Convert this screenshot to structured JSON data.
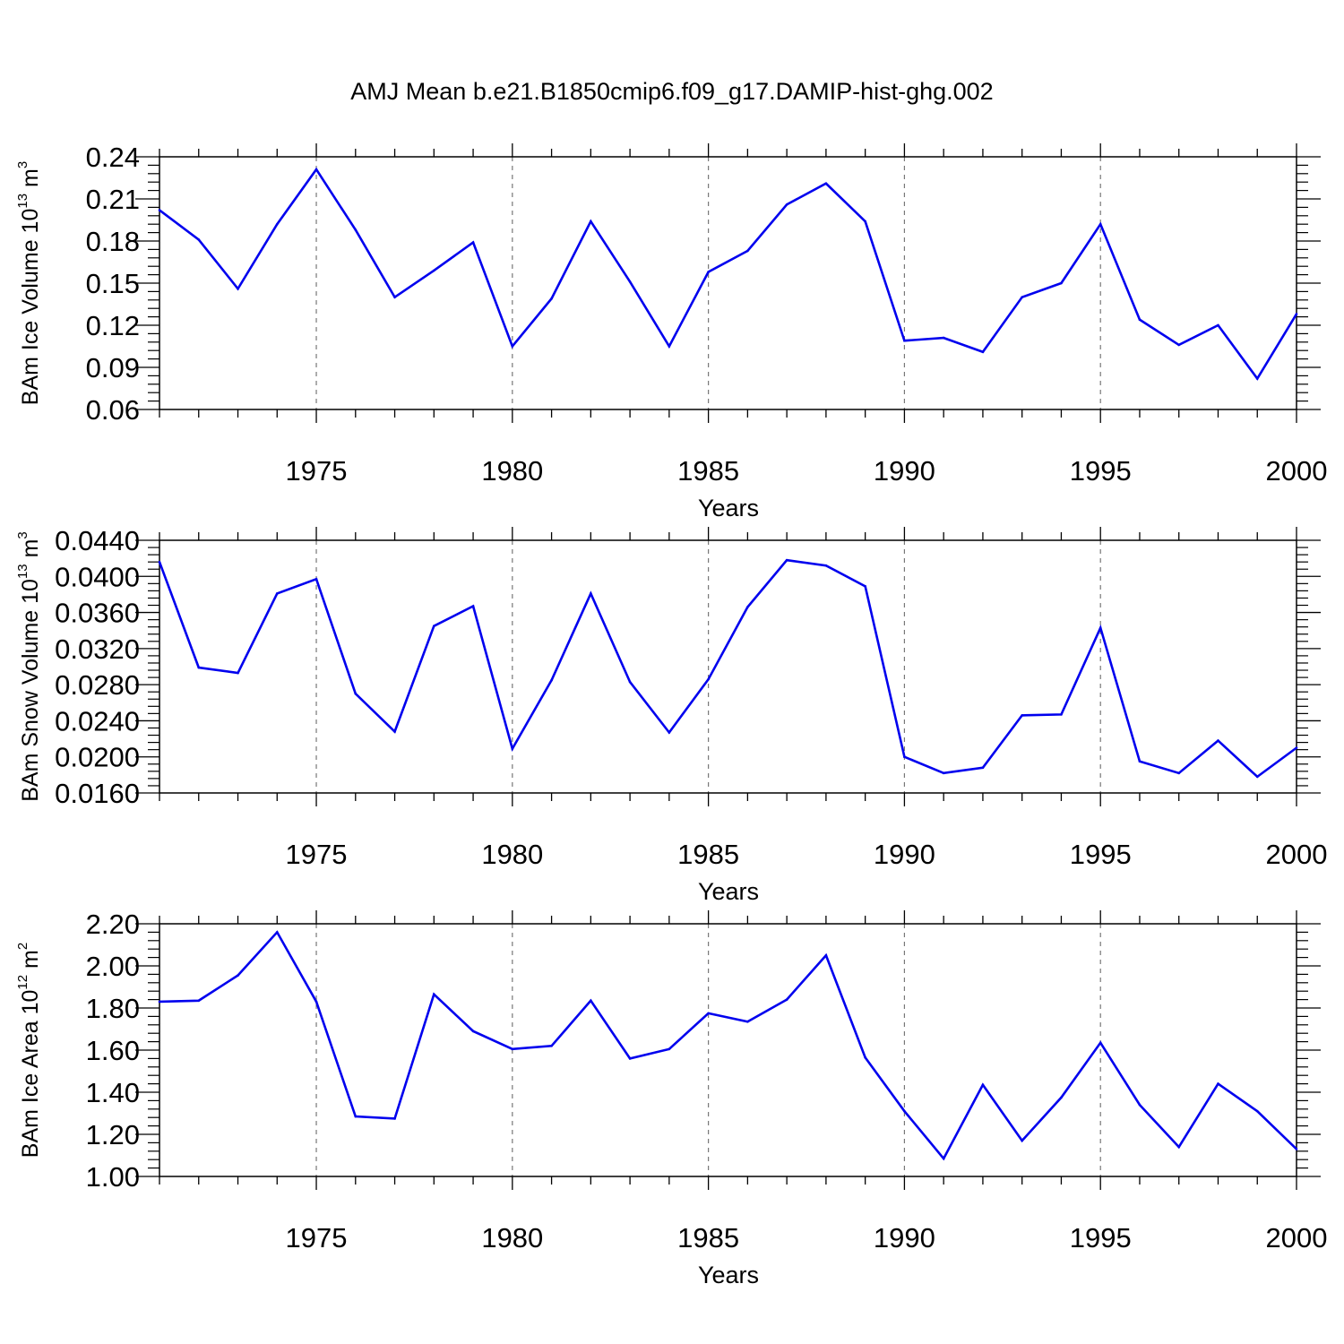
{
  "figure": {
    "title": "AMJ Mean b.e21.B1850cmip6.f09_g17.DAMIP-hist-ghg.002"
  },
  "chart_data": [
    {
      "type": "line",
      "ylabel_main": "BAm Ice Volume 10",
      "ylabel_exp": "13",
      "ylabel_unit": "m",
      "ylabel_unit_exp": "3",
      "xlabel": "Years",
      "xlim": [
        1971,
        2000
      ],
      "ylim": [
        0.06,
        0.24
      ],
      "xticks": [
        1975,
        1980,
        1985,
        1990,
        1995,
        2000
      ],
      "xtick_labels": [
        "1975",
        "1980",
        "1985",
        "1990",
        "1995",
        "2000"
      ],
      "yticks": [
        0.06,
        0.09,
        0.12,
        0.15,
        0.18,
        0.21,
        0.24
      ],
      "ytick_labels": [
        "0.06",
        "0.09",
        "0.12",
        "0.15",
        "0.18",
        "0.21",
        "0.24"
      ],
      "grid": "vertical dashed at major x ticks",
      "color": "#0000ee",
      "x": [
        1971,
        1972,
        1973,
        1974,
        1975,
        1976,
        1977,
        1978,
        1979,
        1980,
        1981,
        1982,
        1983,
        1984,
        1985,
        1986,
        1987,
        1988,
        1989,
        1990,
        1991,
        1992,
        1993,
        1994,
        1995,
        1996,
        1997,
        1998,
        1999,
        2000
      ],
      "y": [
        0.202,
        0.181,
        0.146,
        0.192,
        0.231,
        0.188,
        0.14,
        0.159,
        0.179,
        0.105,
        0.139,
        0.194,
        0.151,
        0.105,
        0.158,
        0.173,
        0.206,
        0.221,
        0.194,
        0.109,
        0.111,
        0.101,
        0.14,
        0.15,
        0.192,
        0.124,
        0.106,
        0.12,
        0.082,
        0.128
      ]
    },
    {
      "type": "line",
      "ylabel_main": "BAm Snow Volume 10",
      "ylabel_exp": "13",
      "ylabel_unit": "m",
      "ylabel_unit_exp": "3",
      "xlabel": "Years",
      "xlim": [
        1971,
        2000
      ],
      "ylim": [
        0.016,
        0.044
      ],
      "xticks": [
        1975,
        1980,
        1985,
        1990,
        1995,
        2000
      ],
      "xtick_labels": [
        "1975",
        "1980",
        "1985",
        "1990",
        "1995",
        "2000"
      ],
      "yticks": [
        0.016,
        0.02,
        0.024,
        0.028,
        0.032,
        0.036,
        0.04,
        0.044
      ],
      "ytick_labels": [
        "0.0160",
        "0.0200",
        "0.0240",
        "0.0280",
        "0.0320",
        "0.0360",
        "0.0400",
        "0.0440"
      ],
      "grid": "vertical dashed at major x ticks",
      "color": "#0000ee",
      "x": [
        1971,
        1972,
        1973,
        1974,
        1975,
        1976,
        1977,
        1978,
        1979,
        1980,
        1981,
        1982,
        1983,
        1984,
        1985,
        1986,
        1987,
        1988,
        1989,
        1990,
        1991,
        1992,
        1993,
        1994,
        1995,
        1996,
        1997,
        1998,
        1999,
        2000
      ],
      "y": [
        0.0416,
        0.0299,
        0.0293,
        0.0381,
        0.0397,
        0.027,
        0.0228,
        0.0345,
        0.0367,
        0.0209,
        0.0285,
        0.0381,
        0.0283,
        0.0227,
        0.0286,
        0.0366,
        0.0418,
        0.0412,
        0.0389,
        0.02,
        0.0182,
        0.0188,
        0.0246,
        0.0247,
        0.0343,
        0.0195,
        0.0182,
        0.0218,
        0.0178,
        0.021
      ]
    },
    {
      "type": "line",
      "ylabel_main": "BAm Ice Area 10",
      "ylabel_exp": "12",
      "ylabel_unit": "m",
      "ylabel_unit_exp": "2",
      "xlabel": "Years",
      "xlim": [
        1971,
        2000
      ],
      "ylim": [
        1.0,
        2.2
      ],
      "xticks": [
        1975,
        1980,
        1985,
        1990,
        1995,
        2000
      ],
      "xtick_labels": [
        "1975",
        "1980",
        "1985",
        "1990",
        "1995",
        "2000"
      ],
      "yticks": [
        1.0,
        1.2,
        1.4,
        1.6,
        1.8,
        2.0,
        2.2
      ],
      "ytick_labels": [
        "1.00",
        "1.20",
        "1.40",
        "1.60",
        "1.80",
        "2.00",
        "2.20"
      ],
      "grid": "vertical dashed at major x ticks",
      "color": "#0000ee",
      "x": [
        1971,
        1972,
        1973,
        1974,
        1975,
        1976,
        1977,
        1978,
        1979,
        1980,
        1981,
        1982,
        1983,
        1984,
        1985,
        1986,
        1987,
        1988,
        1989,
        1990,
        1991,
        1992,
        1993,
        1994,
        1995,
        1996,
        1997,
        1998,
        1999,
        2000
      ],
      "y": [
        1.83,
        1.835,
        1.955,
        2.16,
        1.83,
        1.285,
        1.275,
        1.865,
        1.69,
        1.605,
        1.62,
        1.835,
        1.56,
        1.605,
        1.775,
        1.735,
        1.84,
        2.05,
        1.565,
        1.31,
        1.085,
        1.435,
        1.17,
        1.375,
        1.635,
        1.34,
        1.14,
        1.44,
        1.31,
        1.13
      ]
    }
  ]
}
